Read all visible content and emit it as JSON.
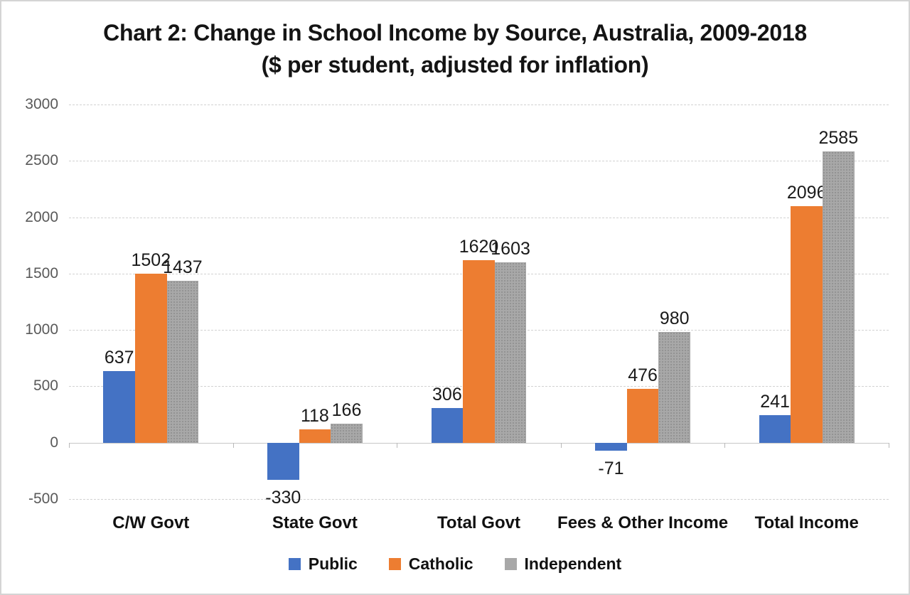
{
  "title": {
    "line1": "Chart 2: Change in School Income by Source, Australia, 2009-2018",
    "line2": "($ per student, adjusted for inflation)"
  },
  "chart_data": {
    "type": "bar",
    "title": "Chart 2: Change in School Income by Source, Australia, 2009-2018 ($ per student, adjusted for inflation)",
    "categories": [
      "C/W Govt",
      "State Govt",
      "Total Govt",
      "Fees & Other Income",
      "Total Income"
    ],
    "series": [
      {
        "name": "Public",
        "color": "#4472C4",
        "pattern": false,
        "values": [
          637,
          -330,
          306,
          -71,
          241
        ]
      },
      {
        "name": "Catholic",
        "color": "#ED7D31",
        "pattern": false,
        "values": [
          1502,
          118,
          1620,
          476,
          2096
        ]
      },
      {
        "name": "Independent",
        "color": "#A8A8A8",
        "pattern": true,
        "values": [
          1437,
          166,
          1603,
          980,
          2585
        ]
      }
    ],
    "xlabel": "",
    "ylabel": "",
    "ylim": [
      -500,
      3000
    ],
    "yticks": [
      3000,
      2500,
      2000,
      1500,
      1000,
      500,
      0,
      -500
    ],
    "grid": true,
    "data_labels": true,
    "legend_position": "bottom",
    "legend": [
      "Public",
      "Catholic",
      "Independent"
    ]
  }
}
